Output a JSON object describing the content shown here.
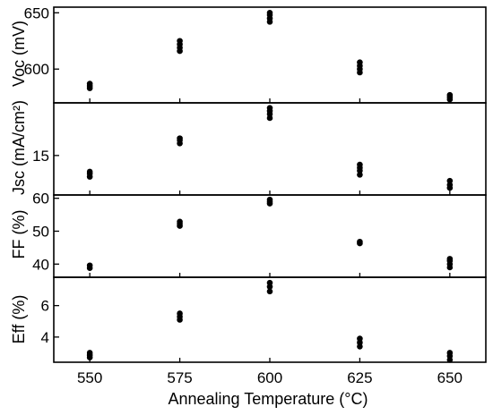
{
  "chart_data": [
    {
      "type": "scatter",
      "ylabel": "Voc (mV)",
      "ylim": [
        570,
        655
      ],
      "yticks": [
        "600",
        "650"
      ],
      "ytick_values": [
        600,
        650
      ],
      "x": [
        550,
        575,
        600,
        625,
        650
      ],
      "points": [
        [
          550,
          583
        ],
        [
          550,
          585
        ],
        [
          550,
          587
        ],
        [
          575,
          616
        ],
        [
          575,
          619
        ],
        [
          575,
          622
        ],
        [
          575,
          625
        ],
        [
          600,
          642
        ],
        [
          600,
          645
        ],
        [
          600,
          648
        ],
        [
          600,
          650
        ],
        [
          625,
          597
        ],
        [
          625,
          600
        ],
        [
          625,
          603
        ],
        [
          625,
          606
        ],
        [
          650,
          573
        ],
        [
          650,
          575
        ],
        [
          650,
          577
        ]
      ]
    },
    {
      "type": "scatter",
      "ylabel": "Jsc (mA/cm²)",
      "ylim": [
        11.1,
        20.2
      ],
      "yticks": [
        "15"
      ],
      "ytick_values": [
        15
      ],
      "x": [
        550,
        575,
        600,
        625,
        650
      ],
      "points": [
        [
          550,
          12.9
        ],
        [
          550,
          13.2
        ],
        [
          550,
          13.4
        ],
        [
          575,
          16.2
        ],
        [
          575,
          16.5
        ],
        [
          575,
          16.7
        ],
        [
          600,
          18.7
        ],
        [
          600,
          19.1
        ],
        [
          600,
          19.4
        ],
        [
          600,
          19.7
        ],
        [
          625,
          13.1
        ],
        [
          625,
          13.5
        ],
        [
          625,
          13.8
        ],
        [
          625,
          14.1
        ],
        [
          650,
          11.8
        ],
        [
          650,
          12.1
        ],
        [
          650,
          12.5
        ]
      ]
    },
    {
      "type": "scatter",
      "ylabel": "FF (%)",
      "ylim": [
        36,
        61
      ],
      "yticks": [
        "40",
        "50",
        "60"
      ],
      "ytick_values": [
        40,
        50,
        60
      ],
      "x": [
        550,
        575,
        600,
        625,
        650
      ],
      "points": [
        [
          550,
          38.8
        ],
        [
          550,
          39.6
        ],
        [
          575,
          51.6
        ],
        [
          575,
          52.3
        ],
        [
          575,
          52.9
        ],
        [
          600,
          58.4
        ],
        [
          600,
          59.0
        ],
        [
          600,
          59.6
        ],
        [
          625,
          46.3
        ],
        [
          625,
          46.8
        ],
        [
          650,
          39.0
        ],
        [
          650,
          40.0
        ],
        [
          650,
          41.0
        ],
        [
          650,
          41.6
        ]
      ]
    },
    {
      "type": "scatter",
      "ylabel": "Eff (%)",
      "xlabel": "Annealing Temperature (°C)",
      "ylim": [
        2.4,
        7.8
      ],
      "yticks": [
        "4",
        "6"
      ],
      "ytick_values": [
        4,
        6
      ],
      "xticks": [
        "550",
        "575",
        "600",
        "625",
        "650"
      ],
      "xtick_values": [
        550,
        575,
        600,
        625,
        650
      ],
      "xlim": [
        540,
        660
      ],
      "x": [
        550,
        575,
        600,
        625,
        650
      ],
      "points": [
        [
          550,
          2.7
        ],
        [
          550,
          2.85
        ],
        [
          550,
          3.0
        ],
        [
          575,
          5.1
        ],
        [
          575,
          5.3
        ],
        [
          575,
          5.5
        ],
        [
          600,
          6.9
        ],
        [
          600,
          7.2
        ],
        [
          600,
          7.45
        ],
        [
          625,
          3.4
        ],
        [
          625,
          3.65
        ],
        [
          625,
          3.9
        ],
        [
          650,
          2.55
        ],
        [
          650,
          2.8
        ],
        [
          650,
          3.0
        ]
      ]
    }
  ]
}
